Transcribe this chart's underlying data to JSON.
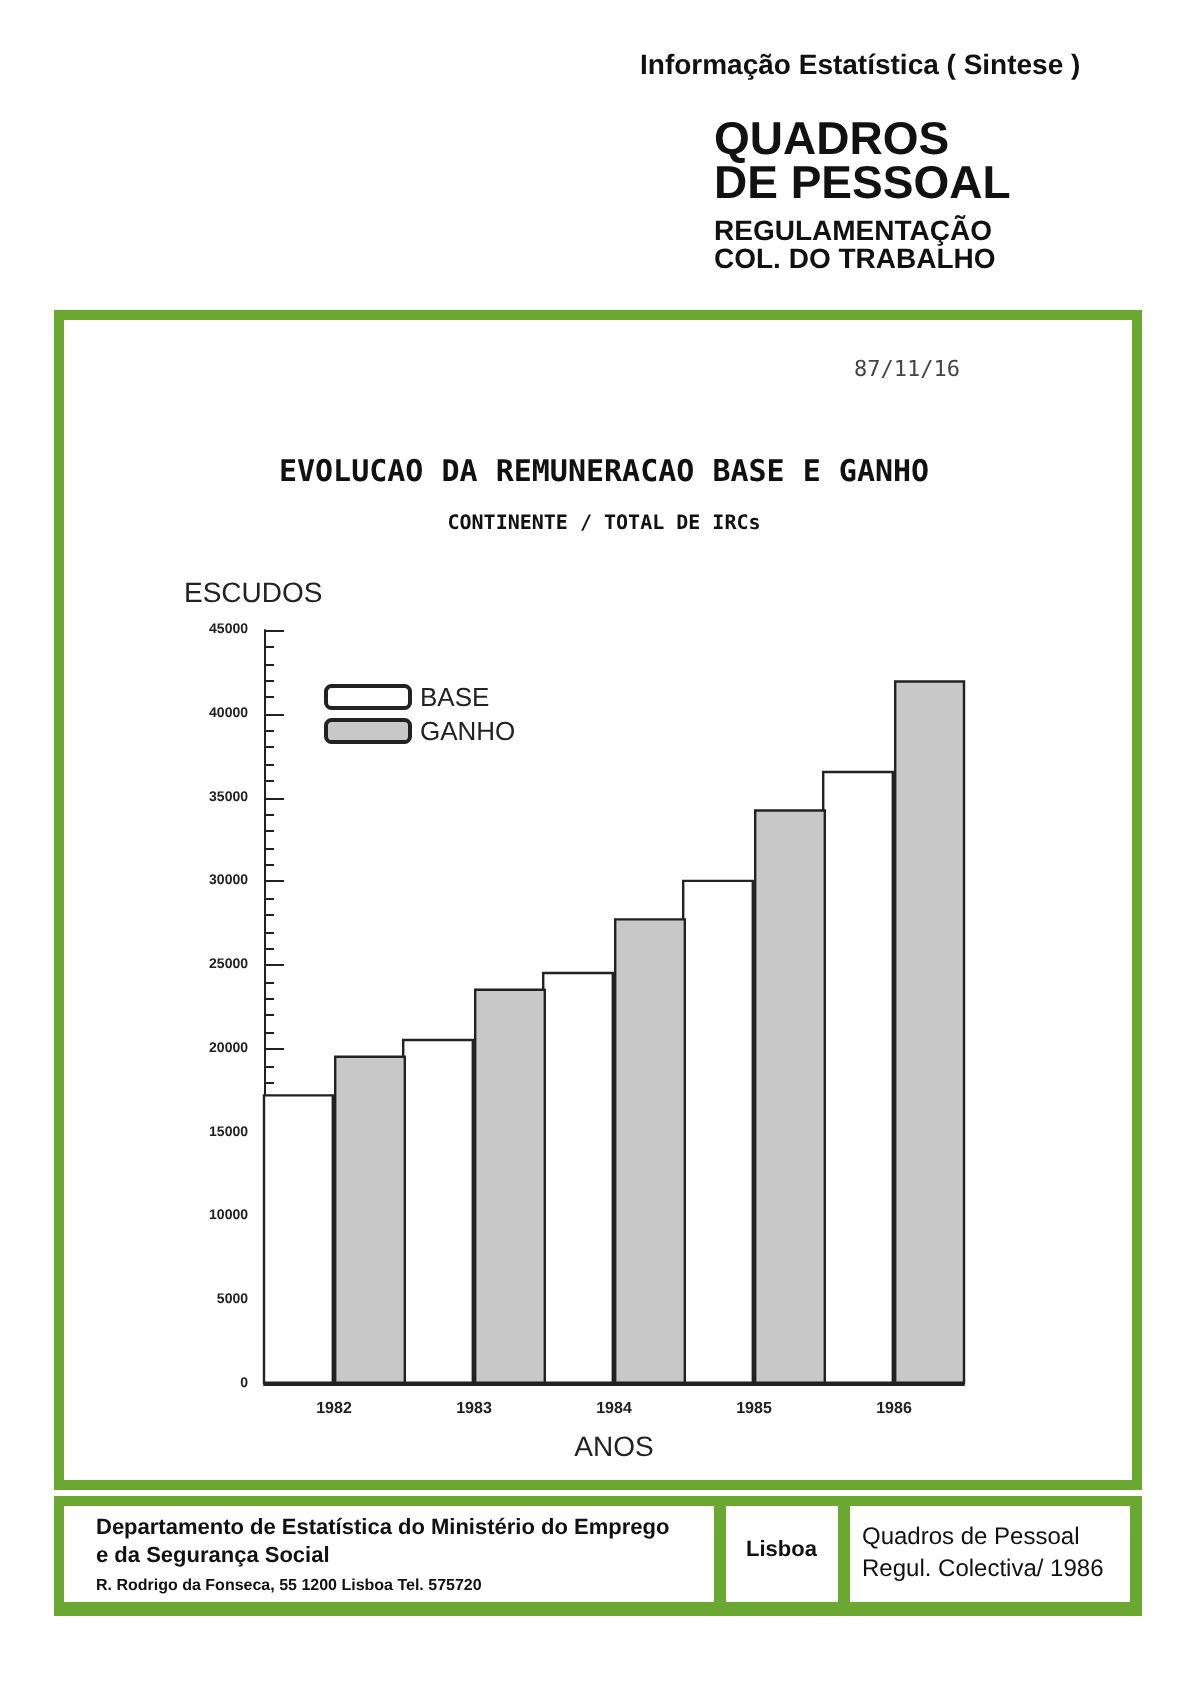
{
  "chart_data": {
    "type": "bar",
    "title": "EVOLUCAO DA REMUNERACAO BASE E GANHO",
    "subtitle": "CONTINENTE / TOTAL DE IRCs",
    "ylabel": "ESCUDOS",
    "xlabel": "ANOS",
    "categories": [
      "1982",
      "1983",
      "1984",
      "1985",
      "1986"
    ],
    "series": [
      {
        "name": "BASE",
        "color": "#ffffff",
        "values": [
          17300,
          20600,
          24600,
          30100,
          36600
        ]
      },
      {
        "name": "GANHO",
        "color": "#c8c8c8",
        "values": [
          19600,
          23600,
          27800,
          34300,
          42000
        ]
      }
    ],
    "ylim": [
      0,
      45000
    ],
    "yticks": [
      0,
      5000,
      10000,
      15000,
      20000,
      25000,
      30000,
      35000,
      40000,
      45000
    ],
    "grid": false,
    "legend": "top left",
    "annotations": [
      "Informação Estatística ( Sintese )",
      "QUADROS\nDE PESSOAL",
      "REGULAMENTAÇÃO\nCOL. DO TRABALHO",
      "87/11/16",
      "Departamento de Estatística do Ministério do Emprego\ne da Segurança Social",
      "R. Rodrigo da Fonseca, 55  1200  Lisboa  Tel. 575720",
      "Lisboa",
      "Quadros de Pessoal\nRegul. Colectiva/ 1986"
    ]
  }
}
